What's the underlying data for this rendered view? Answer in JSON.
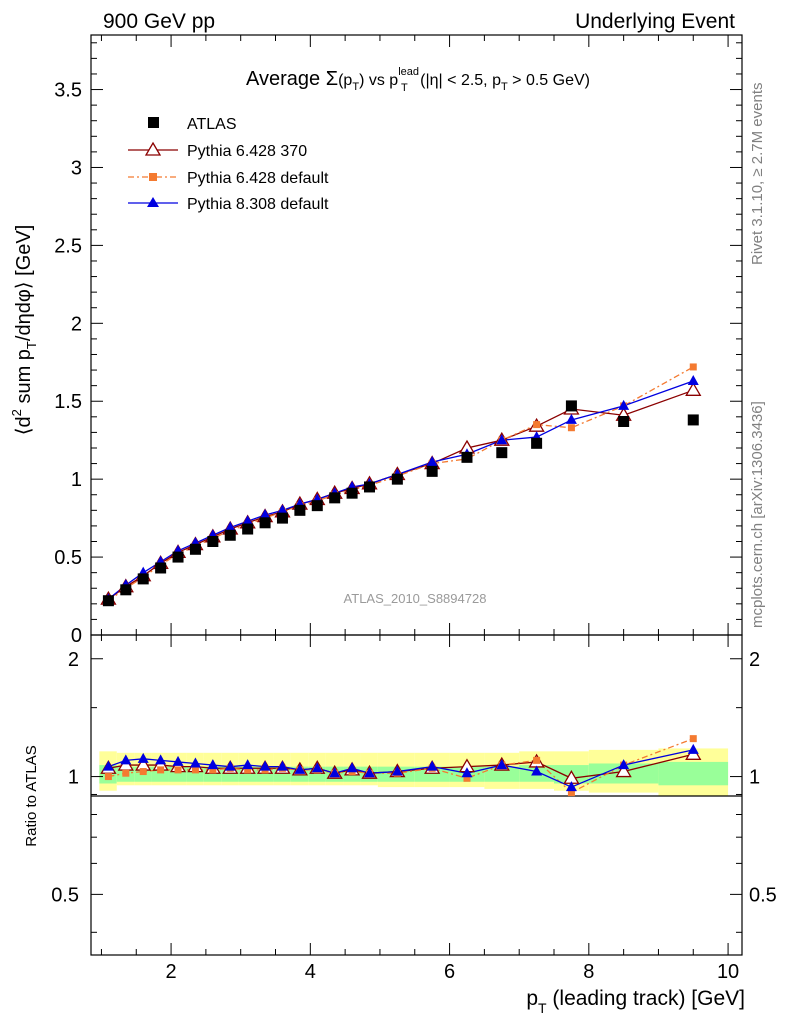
{
  "header": {
    "left": "900 GeV pp",
    "right": "Underlying Event"
  },
  "side_labels": {
    "rivet": "Rivet 3.1.10, ≥ 2.7M events",
    "mcplots": "mcplots.cern.ch [arXiv:1306.3436]"
  },
  "watermark": "ATLAS_2010_S8894728",
  "chart_data": [
    {
      "type": "scatter",
      "title_parts": {
        "prefix": "Average ",
        "sigma": "Σ",
        "sigma_arg": "(p",
        "sigma_sub": "T",
        "sigma_close": ")",
        "vs": " vs p",
        "lead_sup": "lead",
        "lead_sub": "T",
        "cuts1": " (|η| < 2.5, p",
        "cuts_sub": "T",
        "cuts2": " > 0.5 GeV)"
      },
      "ylabel_parts": {
        "a": "⟨d",
        "sup": "2",
        "b": " sum p",
        "sub": "T",
        "c": "/dηdφ⟩ [GeV]"
      },
      "xlim": [
        0.85,
        10.2
      ],
      "ylim": [
        0,
        3.85
      ],
      "yticks": [
        0,
        0.5,
        1,
        1.5,
        2,
        2.5,
        3,
        3.5
      ],
      "ytick_labels": [
        "0",
        "0.5",
        "1",
        "1.5",
        "2",
        "2.5",
        "3",
        "3.5"
      ],
      "legend_position": "top-left",
      "x": [
        1.1,
        1.35,
        1.6,
        1.85,
        2.1,
        2.35,
        2.6,
        2.85,
        3.1,
        3.35,
        3.6,
        3.85,
        4.1,
        4.35,
        4.6,
        4.85,
        5.25,
        5.75,
        6.25,
        6.75,
        7.25,
        7.75,
        8.5,
        9.5
      ],
      "series": [
        {
          "name": "ATLAS",
          "color": "#000000",
          "marker": "square",
          "line": false,
          "values": [
            0.22,
            0.29,
            0.36,
            0.43,
            0.5,
            0.55,
            0.6,
            0.64,
            0.68,
            0.72,
            0.75,
            0.8,
            0.83,
            0.88,
            0.91,
            0.95,
            1.0,
            1.05,
            1.14,
            1.17,
            1.23,
            1.47,
            1.37,
            1.38
          ]
        },
        {
          "name": "Pythia 6.428 370",
          "color": "#8b0000",
          "marker": "triangle-open",
          "line": "solid",
          "values": [
            0.23,
            0.31,
            0.38,
            0.46,
            0.53,
            0.58,
            0.63,
            0.68,
            0.72,
            0.76,
            0.79,
            0.84,
            0.87,
            0.91,
            0.94,
            0.97,
            1.03,
            1.1,
            1.2,
            1.25,
            1.34,
            1.45,
            1.41,
            1.57
          ]
        },
        {
          "name": "Pythia 6.428 default",
          "color": "#f47a30",
          "marker": "square-small",
          "line": "dashdot",
          "values": [
            0.22,
            0.3,
            0.37,
            0.45,
            0.52,
            0.57,
            0.62,
            0.67,
            0.71,
            0.75,
            0.79,
            0.83,
            0.86,
            0.9,
            0.93,
            0.96,
            1.02,
            1.1,
            1.13,
            1.25,
            1.35,
            1.33,
            1.47,
            1.72
          ]
        },
        {
          "name": "Pythia 8.308 default",
          "color": "#0000e0",
          "marker": "triangle-filled",
          "line": "solid",
          "values": [
            0.23,
            0.32,
            0.4,
            0.47,
            0.54,
            0.59,
            0.64,
            0.69,
            0.73,
            0.77,
            0.8,
            0.84,
            0.87,
            0.91,
            0.95,
            0.97,
            1.03,
            1.11,
            1.16,
            1.25,
            1.27,
            1.38,
            1.47,
            1.63
          ]
        }
      ]
    },
    {
      "type": "scatter",
      "ylabel": "Ratio to ATLAS",
      "xlabel_parts": {
        "a": "p",
        "sub": "T",
        "b": " (leading track) [GeV]"
      },
      "xlim": [
        0.85,
        10.2
      ],
      "ylim": [
        0.35,
        2.3
      ],
      "xticks": [
        2,
        4,
        6,
        8,
        10
      ],
      "xtick_labels": [
        "2",
        "4",
        "6",
        "8",
        "10"
      ],
      "yticks": [
        0.5,
        1,
        2
      ],
      "ytick_labels": [
        "0.5",
        "1",
        "2"
      ],
      "bands": {
        "outer_color": "#ffff99",
        "inner_color": "#99ff99",
        "edges": [
          0.97,
          1.22,
          1.47,
          1.72,
          1.97,
          2.22,
          2.47,
          2.72,
          2.97,
          3.22,
          3.47,
          3.72,
          3.97,
          4.22,
          4.47,
          4.72,
          4.97,
          5.5,
          6.0,
          6.5,
          7.0,
          7.5,
          8.0,
          9.0,
          10.0
        ],
        "outer_low": [
          0.92,
          0.95,
          0.95,
          0.95,
          0.95,
          0.95,
          0.95,
          0.95,
          0.95,
          0.95,
          0.95,
          0.95,
          0.95,
          0.95,
          0.95,
          0.95,
          0.94,
          0.94,
          0.94,
          0.93,
          0.93,
          0.92,
          0.91,
          0.89
        ],
        "outer_high": [
          1.16,
          1.15,
          1.15,
          1.15,
          1.15,
          1.15,
          1.15,
          1.15,
          1.15,
          1.15,
          1.15,
          1.15,
          1.15,
          1.15,
          1.15,
          1.15,
          1.15,
          1.15,
          1.15,
          1.15,
          1.16,
          1.16,
          1.17,
          1.18
        ],
        "inner_low": [
          0.96,
          0.97,
          0.97,
          0.97,
          0.97,
          0.97,
          0.97,
          0.97,
          0.97,
          0.97,
          0.97,
          0.97,
          0.97,
          0.97,
          0.97,
          0.97,
          0.97,
          0.97,
          0.97,
          0.97,
          0.97,
          0.96,
          0.96,
          0.95
        ],
        "inner_high": [
          1.07,
          1.06,
          1.06,
          1.06,
          1.06,
          1.06,
          1.06,
          1.06,
          1.06,
          1.06,
          1.06,
          1.06,
          1.06,
          1.06,
          1.06,
          1.06,
          1.06,
          1.06,
          1.06,
          1.06,
          1.07,
          1.07,
          1.08,
          1.09
        ]
      },
      "series": [
        {
          "name": "Pythia 6.428 370",
          "color": "#8b0000",
          "marker": "triangle-open",
          "line": "solid",
          "values": [
            1.05,
            1.07,
            1.07,
            1.07,
            1.06,
            1.06,
            1.05,
            1.05,
            1.05,
            1.05,
            1.05,
            1.04,
            1.05,
            1.02,
            1.04,
            1.02,
            1.03,
            1.05,
            1.06,
            1.07,
            1.09,
            0.99,
            1.03,
            1.14
          ]
        },
        {
          "name": "Pythia 6.428 default",
          "color": "#f47a30",
          "marker": "square-small",
          "line": "dashdot",
          "values": [
            1.0,
            1.02,
            1.03,
            1.04,
            1.04,
            1.04,
            1.04,
            1.05,
            1.04,
            1.04,
            1.05,
            1.04,
            1.04,
            1.02,
            1.03,
            1.02,
            1.02,
            1.05,
            0.99,
            1.07,
            1.1,
            0.91,
            1.07,
            1.25
          ]
        },
        {
          "name": "Pythia 8.308 default",
          "color": "#0000e0",
          "marker": "triangle-filled",
          "line": "solid",
          "values": [
            1.06,
            1.1,
            1.11,
            1.1,
            1.09,
            1.08,
            1.07,
            1.06,
            1.07,
            1.06,
            1.06,
            1.04,
            1.05,
            1.02,
            1.05,
            1.02,
            1.03,
            1.06,
            1.02,
            1.07,
            1.03,
            0.94,
            1.07,
            1.17
          ]
        }
      ]
    }
  ]
}
